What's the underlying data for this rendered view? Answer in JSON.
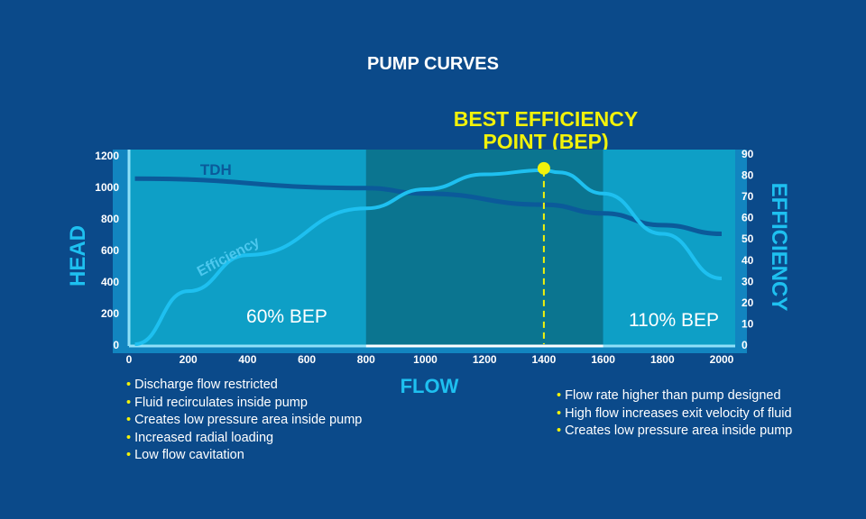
{
  "title": "PUMP CURVES",
  "bep_label": [
    "BEST EFFICIENCY",
    "POINT (BEP)"
  ],
  "colors": {
    "background": "#0b4a8a",
    "low_band": "#0e9fc6",
    "mid_band": "#0b7590",
    "efficiency": "#1ec0f0",
    "tdh": "#0b5a9a",
    "bep": "#f2f20a"
  },
  "chart_data": {
    "type": "line",
    "xlabel": "FLOW",
    "ylabel": "HEAD",
    "y2label": "EFFICIENCY",
    "xlim": [
      0,
      2000
    ],
    "ylim": [
      0,
      1200
    ],
    "y2lim": [
      0,
      90
    ],
    "xticks": [
      0,
      200,
      400,
      600,
      800,
      1000,
      1200,
      1400,
      1600,
      1800,
      2000
    ],
    "yticks": [
      0,
      200,
      400,
      600,
      800,
      1000,
      1200
    ],
    "y2ticks": [
      0,
      10,
      20,
      30,
      40,
      50,
      60,
      70,
      80,
      90
    ],
    "series": [
      {
        "name": "TDH",
        "axis": "left",
        "x": [
          20,
          800,
          1000,
          1400,
          1600,
          1800,
          2000
        ],
        "y": [
          1050,
          990,
          955,
          885,
          830,
          755,
          700
        ]
      },
      {
        "name": "Efficiency",
        "axis": "right",
        "x": [
          20,
          200,
          400,
          800,
          1000,
          1200,
          1400,
          1450,
          1600,
          1800,
          2000
        ],
        "y": [
          0,
          25,
          42,
          64,
          73,
          80,
          82,
          81,
          71,
          52,
          31
        ]
      }
    ],
    "bep": {
      "flow": 1400,
      "efficiency": 82
    },
    "regions": [
      {
        "label": "60% BEP",
        "from": 0,
        "to": 800
      },
      {
        "label": "110% BEP",
        "from": 1600,
        "to": 2000
      }
    ]
  },
  "low_flow_notes": [
    "Discharge flow restricted",
    "Fluid recirculates inside pump",
    "Creates low pressure area inside pump",
    "Increased radial loading",
    "Low flow cavitation"
  ],
  "high_flow_notes": [
    "Flow rate higher than pump designed",
    "High flow increases exit velocity of fluid",
    "Creates low pressure area inside pump"
  ]
}
